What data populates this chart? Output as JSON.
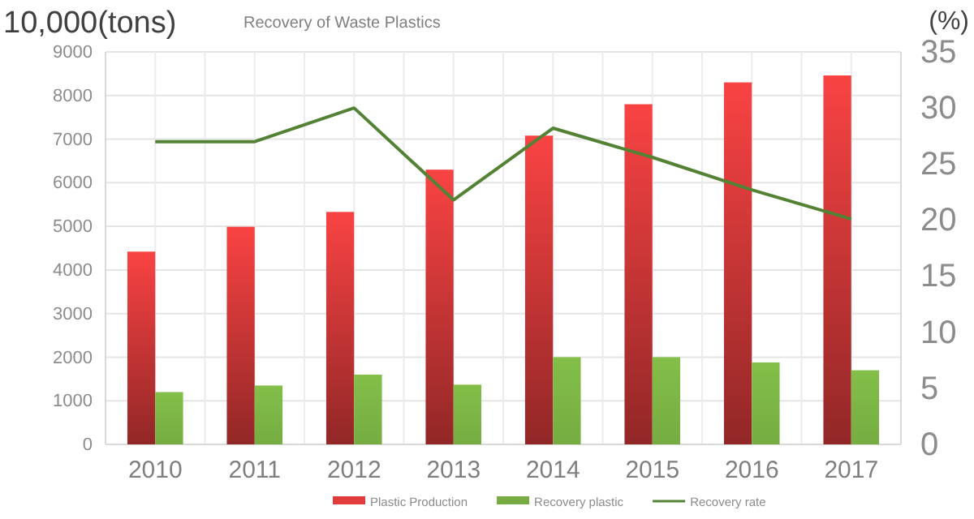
{
  "chart_data": {
    "type": "bar",
    "title": "Recovery of Waste Plastics",
    "ylabel": "10,000(tons)",
    "y2label": "(%)",
    "categories": [
      "2010",
      "2011",
      "2012",
      "2013",
      "2014",
      "2015",
      "2016",
      "2017"
    ],
    "series": [
      {
        "name": "Plastic Production",
        "color": "#e03c3c",
        "values": [
          4420,
          4990,
          5330,
          6300,
          7080,
          7800,
          8300,
          8460
        ]
      },
      {
        "name": "Recovery plastic",
        "color": "#76ac42",
        "values": [
          1200,
          1350,
          1600,
          1370,
          2000,
          2000,
          1880,
          1700
        ]
      },
      {
        "name": "Recovery rate",
        "type": "line",
        "axis": "y2",
        "color": "#548235",
        "values": [
          27,
          27,
          30,
          21.8,
          28.2,
          25.6,
          22.7,
          20.1
        ]
      }
    ],
    "ylim": [
      0,
      9000
    ],
    "yticks": [
      0,
      1000,
      2000,
      3000,
      4000,
      5000,
      6000,
      7000,
      8000,
      9000
    ],
    "y2lim": [
      0,
      35
    ],
    "y2ticks": [
      0,
      5,
      10,
      15,
      20,
      25,
      30,
      35
    ],
    "grid": true,
    "legend": "bottom"
  }
}
